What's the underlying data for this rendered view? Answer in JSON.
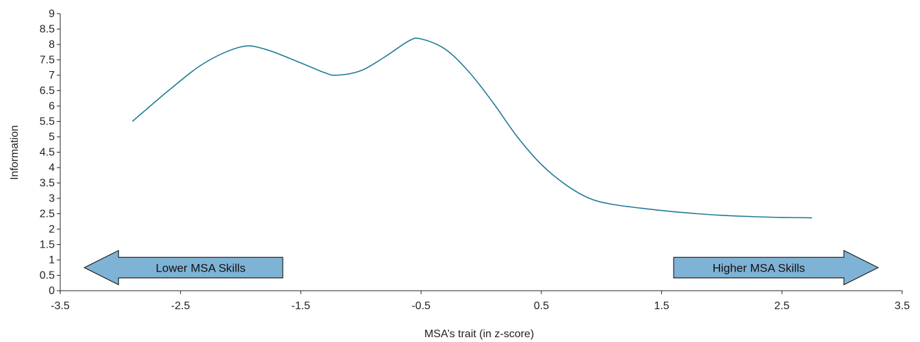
{
  "chart_data": {
    "type": "line",
    "title": "",
    "xlabel": "MSA’s trait (in z-score)",
    "ylabel": "Information",
    "xlim": [
      -3.5,
      3.5
    ],
    "ylim": [
      0,
      9
    ],
    "xticks": [
      "-3.5",
      "-2.5",
      "-1.5",
      "-0.5",
      "0.5",
      "1.5",
      "2.5",
      "3.5"
    ],
    "yticks": [
      "0",
      "0.5",
      "1",
      "1.5",
      "2",
      "2.5",
      "3",
      "3.5",
      "4",
      "4.5",
      "5",
      "5.5",
      "6",
      "6.5",
      "7",
      "7.5",
      "8",
      "8.5",
      "9"
    ],
    "grid": false,
    "series": [
      {
        "color": "#1f7a96",
        "x": [
          -2.9,
          -2.6,
          -2.3,
          -2.0,
          -1.8,
          -1.5,
          -1.3,
          -1.2,
          -1.0,
          -0.8,
          -0.6,
          -0.5,
          -0.3,
          -0.1,
          0.1,
          0.3,
          0.5,
          0.7,
          0.9,
          1.1,
          1.4,
          1.7,
          2.0,
          2.3,
          2.5,
          2.75
        ],
        "y": [
          5.5,
          6.5,
          7.4,
          7.92,
          7.85,
          7.4,
          7.08,
          7.0,
          7.15,
          7.6,
          8.12,
          8.18,
          7.85,
          7.1,
          6.1,
          5.0,
          4.1,
          3.45,
          3.0,
          2.8,
          2.65,
          2.53,
          2.45,
          2.4,
          2.38,
          2.37
        ]
      }
    ],
    "annotations": [
      {
        "text": "Lower MSA Skills",
        "direction": "left",
        "x_from": -3.3,
        "x_to": -1.65,
        "y": 0.75,
        "fill": "#7fb3d5"
      },
      {
        "text": "Higher MSA Skills",
        "direction": "right",
        "x_from": 1.6,
        "x_to": 3.3,
        "y": 0.75,
        "fill": "#7fb3d5"
      }
    ]
  }
}
